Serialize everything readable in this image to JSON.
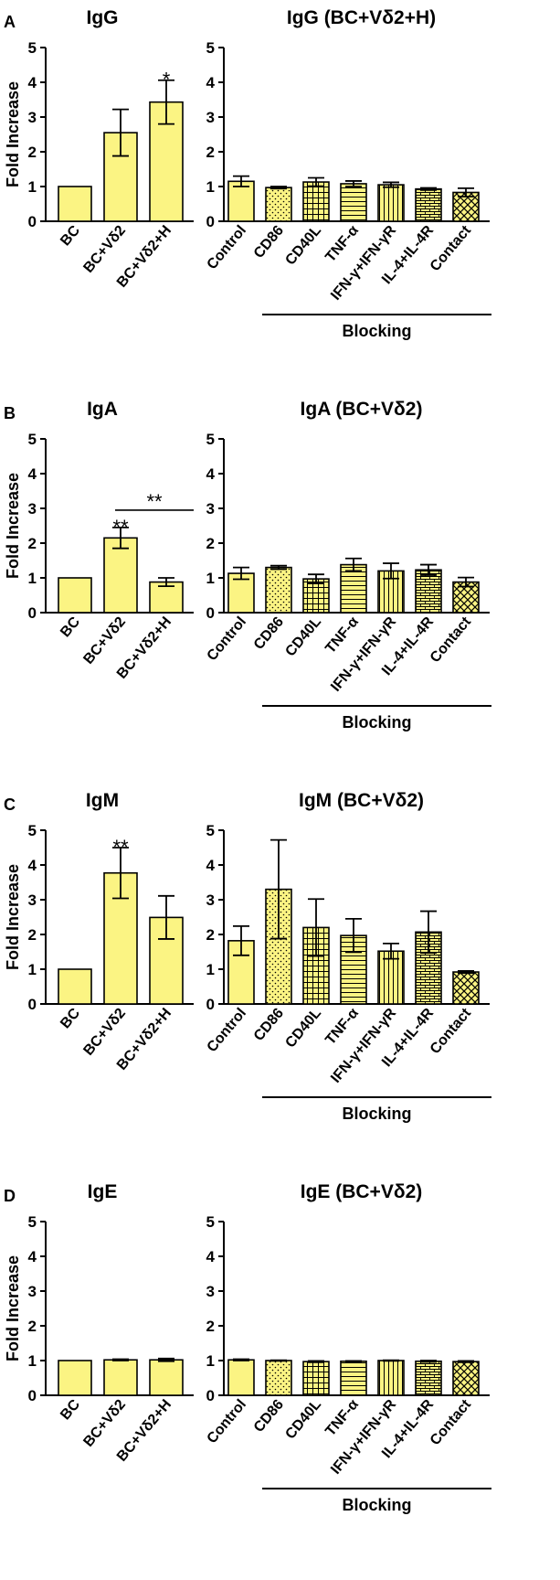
{
  "figure": {
    "background": "#ffffff",
    "bar_color": "#fbf483",
    "line_color": "#000000"
  },
  "chart_data": [
    {
      "type": "bar",
      "panel": "A",
      "title": "IgG",
      "ylabel": "Fold Increase",
      "ylim": [
        0,
        5
      ],
      "yticks": [
        "0",
        "1",
        "2",
        "3",
        "4",
        "5"
      ],
      "categories": [
        "BC",
        "BC+Vδ2",
        "BC+Vδ2+H"
      ],
      "values": [
        1.0,
        2.55,
        3.43
      ],
      "errors": [
        0,
        0.67,
        0.63
      ],
      "significance": [
        {
          "index": 2,
          "label": "*"
        }
      ]
    },
    {
      "type": "bar",
      "panel": "A",
      "title": "IgG (BC+Vδ2+H)",
      "ylim": [
        0,
        5
      ],
      "yticks": [
        "0",
        "1",
        "2",
        "3",
        "4",
        "5"
      ],
      "categories": [
        "Control",
        "CD86",
        "CD40L",
        "TNF-α",
        "IFN-γ+IFN-γR",
        "IL-4+IL-4R",
        "Contact"
      ],
      "values": [
        1.15,
        0.97,
        1.13,
        1.08,
        1.05,
        0.93,
        0.83
      ],
      "errors": [
        0.15,
        0.03,
        0.12,
        0.08,
        0.07,
        0.03,
        0.12
      ],
      "patterns": [
        "solid",
        "dots",
        "grid",
        "hlines",
        "vlines",
        "brick",
        "cross"
      ],
      "bracket_label": "Blocking"
    },
    {
      "type": "bar",
      "panel": "B",
      "title": "IgA",
      "ylabel": "Fold Increase",
      "ylim": [
        0,
        5
      ],
      "yticks": [
        "0",
        "1",
        "2",
        "3",
        "4",
        "5"
      ],
      "categories": [
        "BC",
        "BC+Vδ2",
        "BC+Vδ2+H"
      ],
      "values": [
        1.0,
        2.15,
        0.88
      ],
      "errors": [
        0,
        0.3,
        0.12
      ],
      "significance": [
        {
          "index": 1,
          "label": "**"
        }
      ],
      "comparison": {
        "from": 1,
        "to": 2,
        "label": "**"
      }
    },
    {
      "type": "bar",
      "panel": "B",
      "title": "IgA (BC+Vδ2)",
      "ylim": [
        0,
        5
      ],
      "yticks": [
        "0",
        "1",
        "2",
        "3",
        "4",
        "5"
      ],
      "categories": [
        "Control",
        "CD86",
        "CD40L",
        "TNF-α",
        "IFN-γ+IFN-γR",
        "IL-4+IL-4R",
        "Contact"
      ],
      "values": [
        1.13,
        1.3,
        0.97,
        1.38,
        1.2,
        1.23,
        0.88
      ],
      "errors": [
        0.17,
        0.05,
        0.13,
        0.18,
        0.22,
        0.15,
        0.13
      ],
      "patterns": [
        "solid",
        "dots",
        "grid",
        "hlines",
        "vlines",
        "brick",
        "cross"
      ],
      "bracket_label": "Blocking"
    },
    {
      "type": "bar",
      "panel": "C",
      "title": "IgM",
      "ylabel": "Fold Increase",
      "ylim": [
        0,
        5
      ],
      "yticks": [
        "0",
        "1",
        "2",
        "3",
        "4",
        "5"
      ],
      "categories": [
        "BC",
        "BC+Vδ2",
        "BC+Vδ2+H"
      ],
      "values": [
        1.0,
        3.77,
        2.49
      ],
      "errors": [
        0,
        0.73,
        0.62
      ],
      "significance": [
        {
          "index": 1,
          "label": "**"
        }
      ]
    },
    {
      "type": "bar",
      "panel": "C",
      "title": "IgM (BC+Vδ2)",
      "ylim": [
        0,
        5
      ],
      "yticks": [
        "0",
        "1",
        "2",
        "3",
        "4",
        "5"
      ],
      "categories": [
        "Control",
        "CD86",
        "CD40L",
        "TNF-α",
        "IFN-γ+IFN-γR",
        "IL-4+IL-4R",
        "Contact"
      ],
      "values": [
        1.82,
        3.3,
        2.2,
        1.97,
        1.52,
        2.07,
        0.92
      ],
      "errors": [
        0.42,
        1.42,
        0.82,
        0.48,
        0.22,
        0.6,
        0.03
      ],
      "patterns": [
        "solid",
        "dots",
        "grid",
        "hlines",
        "vlines",
        "brick",
        "cross"
      ],
      "bracket_label": "Blocking"
    },
    {
      "type": "bar",
      "panel": "D",
      "title": "IgE",
      "ylabel": "Fold Increase",
      "ylim": [
        0,
        5
      ],
      "yticks": [
        "0",
        "1",
        "2",
        "3",
        "4",
        "5"
      ],
      "categories": [
        "BC",
        "BC+Vδ2",
        "BC+Vδ2+H"
      ],
      "values": [
        1.0,
        1.02,
        1.02
      ],
      "errors": [
        0,
        0.02,
        0.04
      ]
    },
    {
      "type": "bar",
      "panel": "D",
      "title": "IgE (BC+Vδ2)",
      "ylim": [
        0,
        5
      ],
      "yticks": [
        "0",
        "1",
        "2",
        "3",
        "4",
        "5"
      ],
      "categories": [
        "Control",
        "CD86",
        "CD40L",
        "TNF-α",
        "IFN-γ+IFN-γR",
        "IL-4+IL-4R",
        "Contact"
      ],
      "values": [
        1.02,
        1.0,
        0.97,
        0.98,
        1.0,
        0.98,
        0.97
      ],
      "errors": [
        0.02,
        0.01,
        0.02,
        0.01,
        0.01,
        0.02,
        0.02
      ],
      "patterns": [
        "solid",
        "dots",
        "grid",
        "hlines",
        "vlines",
        "brick",
        "cross"
      ],
      "bracket_label": "Blocking"
    }
  ]
}
